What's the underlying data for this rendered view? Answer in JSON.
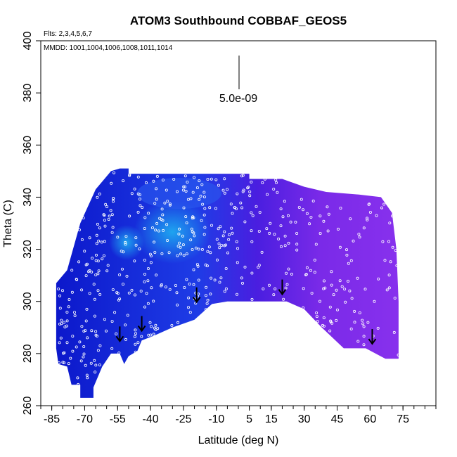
{
  "chart_data": {
    "type": "scatter",
    "title": "ATOM3 Southbound COBBAF_GEOS5",
    "flights_label": "Flts: 2,3,4,5,6,7",
    "mmdd_label": "MMDD: 1001,1004,1006,1008,1011,1014",
    "scale_label": "5.0e-09",
    "xlabel": "Latitude (deg N)",
    "ylabel": "Theta (C)",
    "xlim": [
      -90,
      90
    ],
    "ylim": [
      260,
      400
    ],
    "x_ticks": [
      -85,
      -70,
      -55,
      -40,
      -25,
      -10,
      5,
      15,
      30,
      45,
      60,
      75
    ],
    "y_ticks": [
      260,
      280,
      300,
      320,
      340,
      360,
      380,
      400
    ],
    "colors": {
      "dark_blue": "#0a14c8",
      "mid_blue": "#1e3ce6",
      "cyan": "#1eaaf0",
      "indigo": "#4a1ee0",
      "purple": "#7a2ae8",
      "violet": "#8a32ee"
    },
    "arrows": [
      {
        "lat": -54,
        "theta": 285
      },
      {
        "lat": -44,
        "theta": 289
      },
      {
        "lat": -19,
        "theta": 300
      },
      {
        "lat": 20,
        "theta": 303
      },
      {
        "lat": 61,
        "theta": 284
      }
    ]
  }
}
